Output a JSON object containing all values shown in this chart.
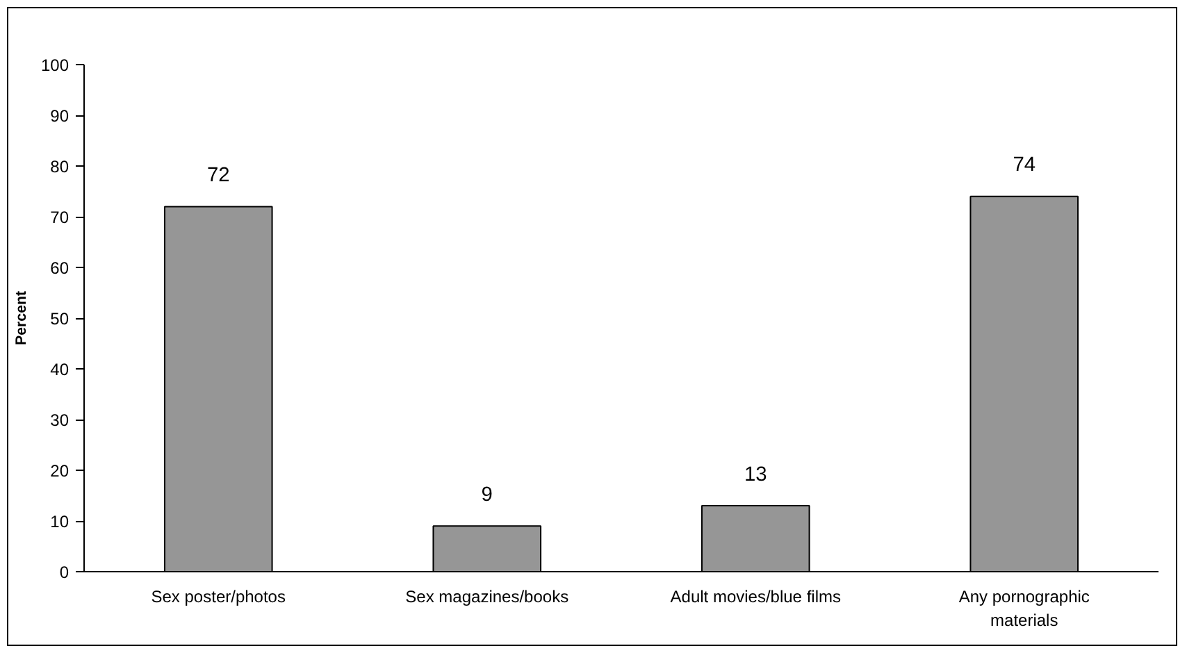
{
  "chart_data": {
    "type": "bar",
    "ylabel": "Percent",
    "categories": [
      "Sex poster/photos",
      "Sex magazines/books",
      "Adult movies/blue films",
      "Any pornographic materials"
    ],
    "values": [
      72,
      9,
      13,
      74
    ],
    "color": "#969696",
    "ylim": [
      0,
      100
    ],
    "yticks": [
      0,
      10,
      20,
      30,
      40,
      50,
      60,
      70,
      80,
      90,
      100
    ],
    "data_labels": true,
    "grid": false
  }
}
